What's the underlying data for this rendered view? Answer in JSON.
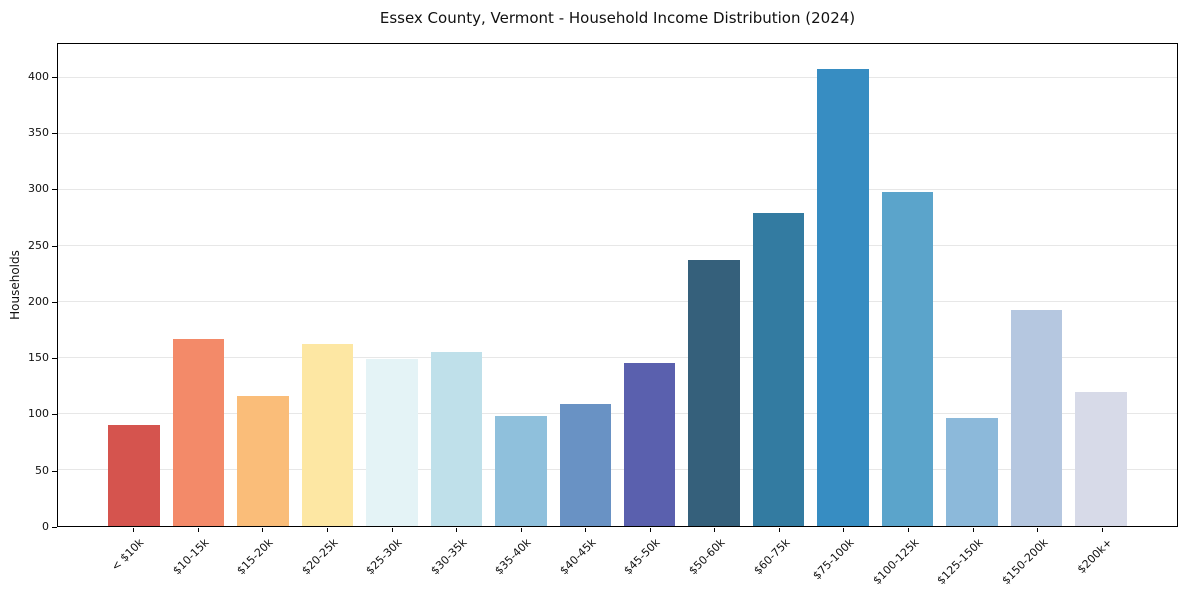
{
  "title": "Essex County, Vermont - Household Income Distribution (2024)",
  "chart_data": {
    "type": "bar",
    "title": "Essex County, Vermont - Household Income Distribution (2024)",
    "xlabel": "",
    "ylabel": "Households",
    "categories": [
      "< $10k",
      "$10-15k",
      "$15-20k",
      "$20-25k",
      "$25-30k",
      "$30-35k",
      "$35-40k",
      "$40-45k",
      "$45-50k",
      "$50-60k",
      "$60-75k",
      "$75-100k",
      "$100-125k",
      "$125-150k",
      "$150-200k",
      "$200k+"
    ],
    "values": [
      90,
      167,
      116,
      162,
      149,
      155,
      98,
      109,
      145,
      237,
      279,
      408,
      298,
      96,
      193,
      120
    ],
    "bar_colors": [
      "#d5544e",
      "#f38a69",
      "#fabd79",
      "#fde7a3",
      "#e4f3f6",
      "#bfe0ea",
      "#8fc0dc",
      "#6992c4",
      "#5a60ae",
      "#35607b",
      "#337ba1",
      "#378dc2",
      "#5ba4cb",
      "#8cb9da",
      "#b5c7e0",
      "#d7dae8"
    ],
    "y_ticks": [
      0,
      50,
      100,
      150,
      200,
      250,
      300,
      350,
      400
    ],
    "ylim": [
      0,
      430
    ],
    "x_tick_rotation_deg": 45,
    "grid": "horizontal",
    "legend": "none"
  },
  "colors": {
    "background": "#ffffff",
    "grid": "#e7e7e7",
    "spine": "#000000",
    "text": "#111111"
  }
}
